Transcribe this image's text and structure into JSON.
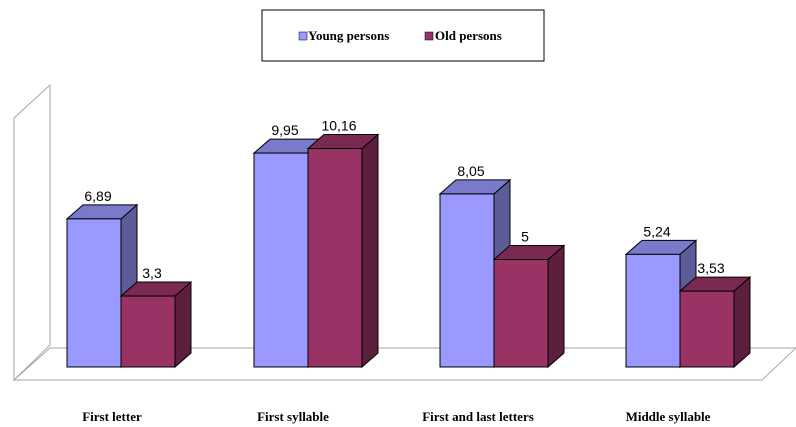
{
  "chart_data": {
    "type": "bar",
    "title": "",
    "xlabel": "",
    "ylabel": "",
    "ylim": [
      0,
      11
    ],
    "grid": false,
    "legend_position": "top",
    "categories": [
      "First letter",
      "First syllable",
      "First and last letters",
      "Middle syllable"
    ],
    "series": [
      {
        "name": "Young persons",
        "values": [
          6.89,
          9.95,
          8.05,
          5.24
        ],
        "labels": [
          "6,89",
          "9,95",
          "8,05",
          "5,24"
        ],
        "color": "#9999ff"
      },
      {
        "name": "Old persons",
        "values": [
          3.3,
          10.16,
          5,
          3.53
        ],
        "labels": [
          "3,3",
          "10,16",
          "5",
          "3,53"
        ],
        "color": "#993366"
      }
    ]
  }
}
